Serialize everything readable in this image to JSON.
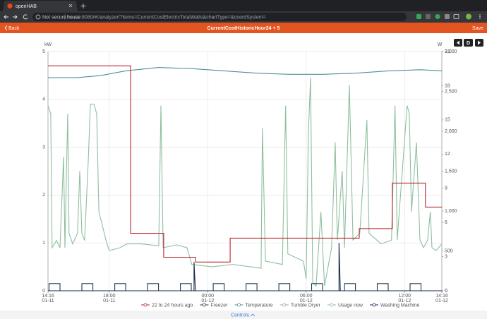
{
  "browser": {
    "tab_title": "openHAB",
    "security": "Not secure",
    "url_host": "house",
    "url_rest": ":8080/#!/analyzer/?items=CurrentCostElectricTotalWatts&chartType=&coordSystem="
  },
  "app_bar": {
    "back": "Back",
    "title": "CurrentCostHistoricHour24 + 5",
    "save": "Save"
  },
  "chart_controls": {
    "period": "D"
  },
  "chart_data": {
    "type": "line",
    "y_label": "kW",
    "y2_label": "W",
    "xlim": [
      "01-11 14:16",
      "01-12 14:16"
    ],
    "xticks": [
      {
        "value": "01-11 14:16",
        "label": [
          "14:16",
          "01-11"
        ]
      },
      {
        "value": "01-11 18:00",
        "label": [
          "18:00",
          "01-11"
        ]
      },
      {
        "value": "01-12 00:00",
        "label": [
          "00:00",
          "01-12"
        ]
      },
      {
        "value": "01-12 06:00",
        "label": [
          "06:00",
          "01-12"
        ]
      },
      {
        "value": "01-12 12:00",
        "label": [
          "12:00",
          "01-12"
        ]
      },
      {
        "value": "01-12 14:16",
        "label": [
          "14:16",
          "01-12"
        ]
      }
    ],
    "ylim": [
      0,
      5
    ],
    "yticks": [
      0,
      1,
      2,
      3,
      4,
      5
    ],
    "y2lim": [
      0,
      3000
    ],
    "y2ticks": [
      0,
      500,
      {
        "value": 1000,
        "label": "1,000"
      },
      {
        "value": 1500,
        "label": "1,500"
      },
      {
        "value": 2000,
        "label": "2,000"
      },
      {
        "value": 2500,
        "label": "2,500"
      },
      {
        "value": 3000,
        "label": "3,000"
      }
    ],
    "y3lim": [
      0,
      21
    ],
    "y3ticks": [
      0,
      3,
      6,
      9,
      12,
      15,
      18,
      21
    ],
    "grid": true,
    "series": [
      {
        "name": "22 to 24 hours ago",
        "color": "#b8262b",
        "x": [
          "01-11 14:16",
          "01-11 19:18",
          "01-11 19:18",
          "01-11 21:19",
          "01-11 21:19",
          "01-11 23:15",
          "01-11 23:15",
          "01-12 01:22",
          "01-12 01:22",
          "01-12 09:14",
          "01-12 09:14",
          "01-12 11:15",
          "01-12 11:15",
          "01-12 13:16",
          "01-12 13:16",
          "01-12 14:16"
        ],
        "values": [
          4.7,
          4.7,
          1.2,
          1.2,
          0.7,
          0.7,
          0.6,
          0.6,
          1.1,
          1.1,
          1.3,
          1.3,
          2.25,
          2.25,
          1.75,
          1.75
        ]
      },
      {
        "name": "Freezer",
        "color": "#1f3a4d",
        "x": [
          "01-11 14:20",
          "01-11 14:20",
          "01-11 15:00",
          "01-11 15:00",
          "01-11 16:20",
          "01-11 16:20",
          "01-11 17:00",
          "01-11 17:00",
          "01-11 18:20",
          "01-11 18:20",
          "01-11 19:00",
          "01-11 19:00",
          "01-11 20:20",
          "01-11 20:20",
          "01-11 21:00",
          "01-11 21:00",
          "01-11 22:20",
          "01-11 22:20",
          "01-11 23:00",
          "01-11 23:00",
          "01-12 00:20",
          "01-12 00:20",
          "01-12 01:00",
          "01-12 01:00",
          "01-12 02:20",
          "01-12 02:20",
          "01-12 03:00",
          "01-12 03:00",
          "01-12 04:20",
          "01-12 04:20",
          "01-12 05:00",
          "01-12 05:00",
          "01-12 06:20",
          "01-12 06:20",
          "01-12 07:00",
          "01-12 07:00",
          "01-12 08:20",
          "01-12 08:20",
          "01-12 09:00",
          "01-12 09:00",
          "01-12 10:20",
          "01-12 10:20",
          "01-12 11:00",
          "01-12 11:00",
          "01-12 12:20",
          "01-12 12:20",
          "01-12 13:00",
          "01-12 13:00"
        ],
        "values": [
          0,
          0.15,
          0.15,
          0,
          0,
          0.15,
          0.15,
          0,
          0,
          0.15,
          0.15,
          0,
          0,
          0.15,
          0.15,
          0,
          0,
          0.15,
          0.15,
          0,
          0,
          0.15,
          0.15,
          0,
          0,
          0.15,
          0.15,
          0,
          0,
          0.15,
          0.15,
          0,
          0,
          0.15,
          0.15,
          0,
          0,
          0.15,
          0.15,
          0,
          0,
          0.15,
          0.15,
          0,
          0,
          0.15,
          0.15,
          0
        ]
      },
      {
        "name": "Temperature",
        "color": "#4f8f96",
        "axis": "y3",
        "x": [
          "01-11 14:16",
          "01-11 16:00",
          "01-11 17:30",
          "01-11 19:00",
          "01-11 21:00",
          "01-11 23:00",
          "01-12 01:00",
          "01-12 03:00",
          "01-12 05:00",
          "01-12 07:00",
          "01-12 09:00",
          "01-12 11:00",
          "01-12 13:00",
          "01-12 14:16"
        ],
        "values": [
          18.7,
          18.7,
          18.9,
          19.3,
          19.6,
          19.5,
          19.3,
          19.1,
          19.0,
          19.0,
          19.1,
          19.3,
          19.4,
          19.3
        ]
      },
      {
        "name": "Tumble Dryer",
        "color": "#9aa7b0",
        "x": [],
        "values": []
      },
      {
        "name": "Usage now",
        "color": "#8fbf9f",
        "x": [
          "01-11 14:16",
          "01-11 14:26",
          "01-11 14:31",
          "01-11 14:47",
          "01-11 15:00",
          "01-11 15:13",
          "01-11 15:18",
          "01-11 15:28",
          "01-11 15:33",
          "01-11 15:46",
          "01-11 16:04",
          "01-11 16:12",
          "01-11 16:20",
          "01-11 16:30",
          "01-11 16:43",
          "01-11 16:51",
          "01-11 17:04",
          "01-11 17:14",
          "01-11 17:22",
          "01-11 17:35",
          "01-11 17:48",
          "01-11 18:00",
          "01-11 18:39",
          "01-11 19:05",
          "01-11 19:57",
          "01-11 21:01",
          "01-11 21:09",
          "01-11 21:17",
          "01-11 22:06",
          "01-11 22:44",
          "01-11 23:02",
          "01-12 00:15",
          "01-12 01:32",
          "01-12 03:15",
          "01-12 03:20",
          "01-12 03:31",
          "01-12 04:33",
          "01-12 04:45",
          "01-12 04:53",
          "01-12 05:50",
          "01-12 06:00",
          "01-12 06:08",
          "01-12 06:16",
          "01-12 06:24",
          "01-12 06:36",
          "01-12 06:54",
          "01-12 07:07",
          "01-12 07:33",
          "01-12 07:46",
          "01-12 07:54",
          "01-12 08:12",
          "01-12 08:20",
          "01-12 08:38",
          "01-12 08:51",
          "01-12 09:16",
          "01-12 09:42",
          "01-12 09:50",
          "01-12 10:34",
          "01-12 11:12",
          "01-12 11:25",
          "01-12 11:33",
          "01-12 12:09",
          "01-12 12:17",
          "01-12 12:25",
          "01-12 12:43",
          "01-12 12:56",
          "01-12 13:09",
          "01-12 13:24",
          "01-12 13:34",
          "01-12 13:40",
          "01-12 13:55",
          "01-12 14:16"
        ],
        "values": [
          3.87,
          3.7,
          0.9,
          1.05,
          0.9,
          2.8,
          0.9,
          3.7,
          1.2,
          0.98,
          1.2,
          2.5,
          1.2,
          1.05,
          2.7,
          3.9,
          3.9,
          3.7,
          1.65,
          1.36,
          1.05,
          0.84,
          0.9,
          0.98,
          0.98,
          0.94,
          3.87,
          0.9,
          0.96,
          0.9,
          0.55,
          0.5,
          0.55,
          0.47,
          3.4,
          0.62,
          0.55,
          3.87,
          0.77,
          0.62,
          0.25,
          3.27,
          4.45,
          0.18,
          0.1,
          1.65,
          0.1,
          0.9,
          3.1,
          1.06,
          2.5,
          0.9,
          4.3,
          1.06,
          1.2,
          3.57,
          1.2,
          0.98,
          1.06,
          3.87,
          1.06,
          3.87,
          3.7,
          1.65,
          3.1,
          1.06,
          0.9,
          1.06,
          1.65,
          0.9,
          0.84,
          0.98
        ]
      },
      {
        "name": "Washing Machine",
        "color": "#16294f",
        "x": [
          "01-11 14:16",
          "01-11 23:10",
          "01-11 23:10",
          "01-11 23:15",
          "01-12 08:00",
          "01-12 08:00",
          "01-12 08:05",
          "01-12 14:16"
        ],
        "values": [
          0,
          0,
          0.6,
          0,
          0,
          1.0,
          0,
          0
        ]
      }
    ]
  },
  "footer": {
    "controls": "Controls"
  }
}
